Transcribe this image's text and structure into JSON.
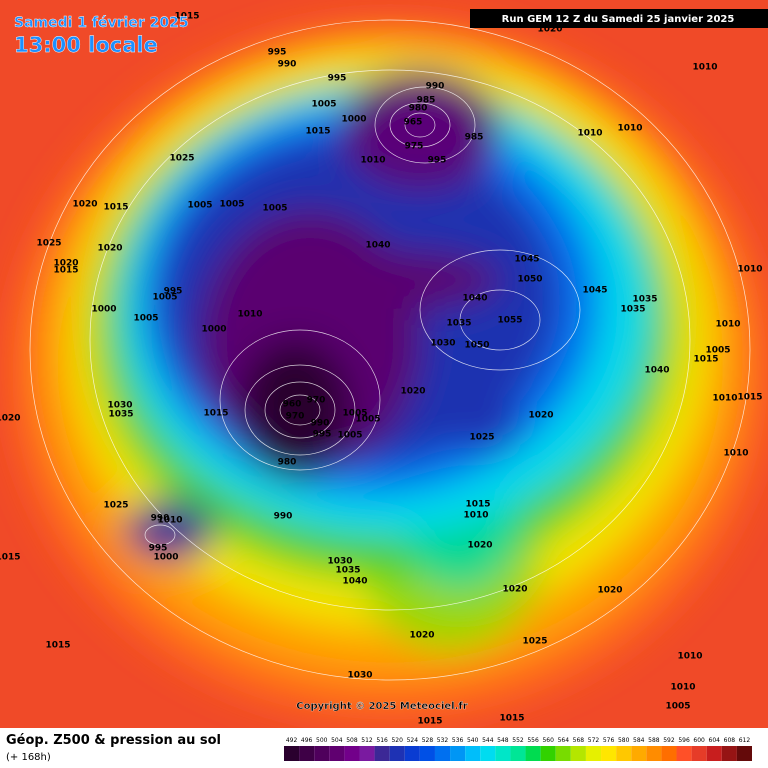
{
  "header": {
    "date": "Samedi 1 février 2025",
    "time": "13:00 locale",
    "run": "Run GEM 12 Z du Samedi 25 janvier 2025"
  },
  "copyright": "Copyright © 2025 Meteociel.fr",
  "footer": {
    "title": "Géop. Z500 & pression au sol",
    "subtitle": "(+ 168h)"
  },
  "scale": {
    "labels": [
      492,
      496,
      500,
      504,
      508,
      512,
      516,
      520,
      524,
      528,
      532,
      536,
      540,
      544,
      548,
      552,
      556,
      560,
      564,
      568,
      572,
      576,
      580,
      584,
      588,
      592,
      596,
      600,
      604,
      608,
      612
    ],
    "colors": [
      "#2a002e",
      "#3e0046",
      "#4f005c",
      "#600070",
      "#72008a",
      "#7a1aa0",
      "#3c2896",
      "#1e32b4",
      "#0a3cd2",
      "#0050e6",
      "#0070f0",
      "#0096f5",
      "#00befa",
      "#00dcf0",
      "#00e6c8",
      "#00e696",
      "#00dc50",
      "#32d200",
      "#78dc00",
      "#b4e600",
      "#e6f000",
      "#ffe600",
      "#ffc800",
      "#ffaa00",
      "#ff8c00",
      "#ff6e00",
      "#ff5028",
      "#e63c28",
      "#c81e1e",
      "#961414",
      "#640a0a"
    ]
  },
  "isobar_labels": [
    "995",
    "990",
    "995",
    "1005",
    "1015",
    "1000",
    "990",
    "985",
    "980",
    "965",
    "975",
    "985",
    "995",
    "1010",
    "1025",
    "1020",
    "1015",
    "1005",
    "1005",
    "1005",
    "1040",
    "1045",
    "1050",
    "1040",
    "1055",
    "1035",
    "1030",
    "1050",
    "1045",
    "1035",
    "1035",
    "1010",
    "1010",
    "1005",
    "1015",
    "1040",
    "1010",
    "1015",
    "1010",
    "1025",
    "1020",
    "1020",
    "1015",
    "995",
    "1005",
    "1000",
    "1005",
    "1000",
    "1010",
    "1020",
    "1020",
    "1025",
    "1005",
    "1005",
    "1005",
    "1015",
    "960",
    "970",
    "970",
    "990",
    "995",
    "980",
    "990",
    "1015",
    "1010",
    "1020",
    "1030",
    "1035",
    "1040",
    "1020",
    "1020",
    "1025",
    "1020",
    "1030",
    "1015",
    "1015",
    "1020",
    "1030",
    "1035",
    "1025",
    "990",
    "995",
    "1000",
    "1010",
    "1015",
    "1020",
    "1010",
    "1010",
    "1010",
    "1010",
    "1010",
    "1005",
    "1015",
    "1015"
  ]
}
